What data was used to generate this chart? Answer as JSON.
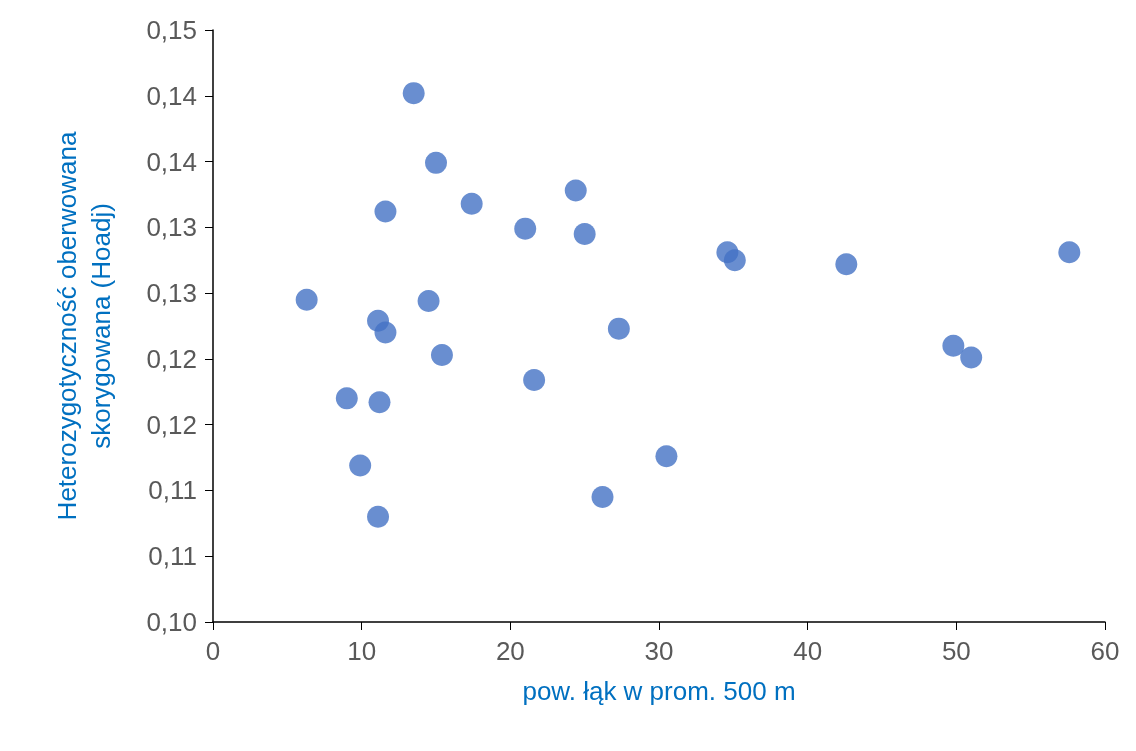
{
  "chart_data": {
    "type": "scatter",
    "xlabel": "pow. łąk w prom. 500 m",
    "ylabel": "Heterozygotyczność oberwowana\nskorygowana (Hoadj)",
    "x": [
      13.5,
      15.0,
      11.6,
      17.4,
      24.4,
      21.0,
      25.0,
      34.6,
      35.1,
      42.6,
      57.6,
      6.3,
      14.5,
      11.1,
      11.6,
      27.3,
      15.4,
      49.8,
      51.0,
      21.6,
      9.0,
      11.2,
      30.5,
      9.9,
      26.2,
      11.1
    ],
    "series": [
      {
        "color": "#4472c4",
        "values": [
          0.1402,
          0.1349,
          0.1312,
          0.1318,
          0.1328,
          0.1299,
          0.1295,
          0.1281,
          0.1275,
          0.1272,
          0.1281,
          0.1245,
          0.1244,
          0.1229,
          0.122,
          0.1223,
          0.1203,
          0.121,
          0.1201,
          0.1184,
          0.117,
          0.1167,
          0.1126,
          0.1119,
          0.1095,
          0.108
        ]
      }
    ],
    "xlim": [
      0,
      60
    ],
    "xticks": [
      0,
      10,
      20,
      30,
      40,
      50,
      60
    ],
    "ylim": [
      0.1,
      0.145
    ],
    "yticks": [
      {
        "value": 0.1,
        "label": "0,10"
      },
      {
        "value": 0.105,
        "label": "0,11"
      },
      {
        "value": 0.11,
        "label": "0,11"
      },
      {
        "value": 0.115,
        "label": "0,12"
      },
      {
        "value": 0.12,
        "label": "0,12"
      },
      {
        "value": 0.125,
        "label": "0,13"
      },
      {
        "value": 0.13,
        "label": "0,13"
      },
      {
        "value": 0.135,
        "label": "0,14"
      },
      {
        "value": 0.14,
        "label": "0,14"
      },
      {
        "value": 0.145,
        "label": "0,15"
      }
    ],
    "marker": "circle"
  }
}
